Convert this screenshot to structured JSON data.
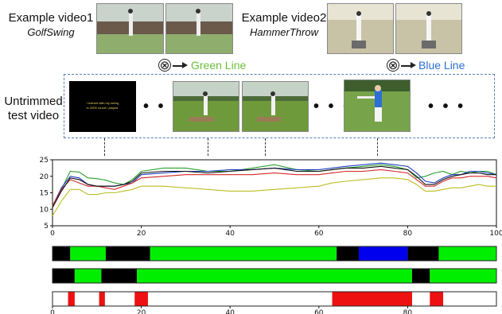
{
  "example1": {
    "title": "Example video1",
    "subtitle": "GolfSwing",
    "line_label": "Green Line",
    "line_color": "#6abf3a"
  },
  "example2": {
    "title": "Example video2",
    "subtitle": "HammerThrow",
    "line_label": "Blue Line",
    "line_color": "#2d6fd6"
  },
  "test_video_label": "Untrimmed test video",
  "thumbnail_caption": "I trained with my swing\nin 2009 round I played.",
  "ellipsis": "• • •",
  "combine_symbol": "⊗",
  "chart_data": [
    {
      "type": "line",
      "xlim": [
        0,
        100
      ],
      "ylim": [
        5,
        25
      ],
      "xticks": [
        0,
        20,
        40,
        60,
        80,
        100
      ],
      "yticks": [
        5,
        10,
        15,
        20,
        25
      ],
      "x": [
        0,
        2,
        4,
        6,
        8,
        10,
        12,
        14,
        16,
        18,
        20,
        25,
        30,
        35,
        40,
        45,
        50,
        55,
        60,
        63,
        66,
        70,
        74,
        77,
        80,
        82,
        84,
        86,
        88,
        90,
        92,
        94,
        96,
        98,
        100
      ],
      "series": [
        {
          "color": "#2ca02c",
          "values": [
            11,
            16,
            21.5,
            21.3,
            19.5,
            19.3,
            18.8,
            18,
            17.5,
            19,
            21.5,
            22.5,
            22.5,
            21.5,
            21.5,
            22.5,
            23.5,
            22,
            21.5,
            22,
            22.5,
            23,
            23.5,
            23,
            22,
            19.5,
            20,
            21,
            21.5,
            20.5,
            21.5,
            21,
            21.5,
            21.5,
            20.5
          ]
        },
        {
          "color": "#1f3fbf",
          "values": [
            11,
            16.5,
            20,
            19.5,
            17.5,
            17,
            17,
            17,
            17.5,
            18,
            20.5,
            21,
            21.5,
            21.5,
            22,
            22,
            22.5,
            22,
            22,
            22.5,
            23,
            23.5,
            24,
            23.5,
            23,
            21,
            18.5,
            18,
            19.5,
            20.5,
            20.5,
            21.5,
            21.5,
            21,
            20.5
          ]
        },
        {
          "color": "#d62728",
          "values": [
            11,
            16,
            19,
            18,
            17,
            17,
            16.5,
            16,
            17,
            18,
            19.5,
            20,
            20.5,
            20.5,
            20.5,
            20.5,
            21,
            20.5,
            20.5,
            21,
            21.5,
            21.5,
            22,
            21.5,
            21,
            19,
            17,
            17,
            18.5,
            19.5,
            19.5,
            20,
            20,
            20,
            19.5
          ]
        },
        {
          "color": "#111111",
          "values": [
            10.5,
            15.5,
            19.5,
            19,
            17.5,
            17,
            17,
            17,
            17.5,
            18.5,
            21,
            21.5,
            21.5,
            21,
            21.5,
            22,
            22.5,
            21.5,
            21.5,
            22,
            22.5,
            22.5,
            23,
            22.5,
            22,
            20,
            17.5,
            17.5,
            19,
            20,
            20.5,
            21,
            21,
            20.5,
            20.5
          ]
        },
        {
          "color": "#bcbd22",
          "values": [
            8,
            12.5,
            16,
            16,
            14.5,
            14.5,
            15,
            15,
            15.5,
            16,
            17,
            17,
            16.5,
            16,
            15.5,
            15.5,
            16,
            16.5,
            17,
            18,
            18.5,
            19,
            19.5,
            19.5,
            19,
            17.5,
            15.5,
            15.5,
            16,
            16.5,
            16.5,
            17,
            17.5,
            17,
            17
          ]
        }
      ]
    },
    {
      "type": "heatmap",
      "xlim": [
        0,
        100
      ],
      "rows": [
        {
          "segments": [
            {
              "start": 0,
              "end": 4,
              "color": "#000000"
            },
            {
              "start": 4,
              "end": 12,
              "color": "#00ee00"
            },
            {
              "start": 12,
              "end": 22,
              "color": "#000000"
            },
            {
              "start": 22,
              "end": 64,
              "color": "#00ee00"
            },
            {
              "start": 64,
              "end": 69,
              "color": "#000000"
            },
            {
              "start": 69,
              "end": 80,
              "color": "#0000ee"
            },
            {
              "start": 80,
              "end": 87,
              "color": "#000000"
            },
            {
              "start": 87,
              "end": 100,
              "color": "#00ee00"
            }
          ]
        },
        {
          "segments": [
            {
              "start": 0,
              "end": 5,
              "color": "#000000"
            },
            {
              "start": 5,
              "end": 11,
              "color": "#00ee00"
            },
            {
              "start": 11,
              "end": 19,
              "color": "#000000"
            },
            {
              "start": 19,
              "end": 81,
              "color": "#00ee00"
            },
            {
              "start": 81,
              "end": 85,
              "color": "#000000"
            },
            {
              "start": 85,
              "end": 100,
              "color": "#00ee00"
            }
          ]
        }
      ]
    },
    {
      "type": "heatmap",
      "xlim": [
        0,
        100
      ],
      "xticks": [
        0,
        20,
        40,
        60,
        80
      ],
      "rows": [
        {
          "segments": [
            {
              "start": 3.5,
              "end": 5,
              "color": "#ee1111"
            },
            {
              "start": 10.5,
              "end": 11.8,
              "color": "#ee1111"
            },
            {
              "start": 18.5,
              "end": 21.5,
              "color": "#ee1111"
            },
            {
              "start": 63,
              "end": 81,
              "color": "#ee1111"
            },
            {
              "start": 85,
              "end": 88,
              "color": "#ee1111"
            }
          ]
        }
      ]
    }
  ]
}
